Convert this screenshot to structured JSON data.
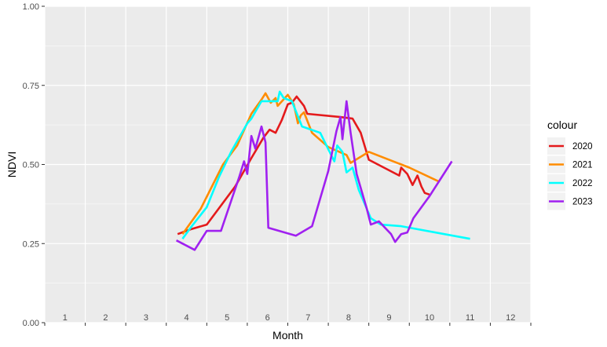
{
  "chart_data": {
    "type": "line",
    "title": "",
    "xlabel": "Month",
    "ylabel": "NDVI",
    "xlim": [
      0.5,
      12.5
    ],
    "ylim": [
      0,
      1
    ],
    "x_ticks": [
      1,
      2,
      3,
      4,
      5,
      6,
      7,
      8,
      9,
      10,
      11,
      12
    ],
    "x_tick_labels": [
      "1",
      "2",
      "3",
      "4",
      "5",
      "6",
      "7",
      "8",
      "9",
      "10",
      "11",
      "12"
    ],
    "y_ticks": [
      0,
      0.25,
      0.5,
      0.75,
      1
    ],
    "y_tick_labels": [
      "0.00",
      "0.25",
      "0.50",
      "0.75",
      "1.00"
    ],
    "grid": true,
    "legend": {
      "title": "colour",
      "position": "right",
      "entries": [
        "2020",
        "2021",
        "2022",
        "2023"
      ]
    },
    "series": [
      {
        "name": "2020",
        "color": "#e41a1c",
        "points": [
          [
            3.78,
            0.28
          ],
          [
            4.1,
            0.295
          ],
          [
            4.5,
            0.31
          ],
          [
            5.2,
            0.43
          ],
          [
            5.6,
            0.52
          ],
          [
            5.9,
            0.585
          ],
          [
            6.05,
            0.61
          ],
          [
            6.2,
            0.6
          ],
          [
            6.35,
            0.64
          ],
          [
            6.5,
            0.69
          ],
          [
            6.6,
            0.695
          ],
          [
            6.72,
            0.715
          ],
          [
            6.9,
            0.685
          ],
          [
            6.98,
            0.66
          ],
          [
            7.8,
            0.65
          ],
          [
            8.1,
            0.645
          ],
          [
            8.3,
            0.6
          ],
          [
            8.5,
            0.515
          ],
          [
            9.25,
            0.465
          ],
          [
            9.3,
            0.49
          ],
          [
            9.45,
            0.47
          ],
          [
            9.58,
            0.435
          ],
          [
            9.7,
            0.465
          ],
          [
            9.8,
            0.43
          ],
          [
            9.88,
            0.41
          ],
          [
            10.0,
            0.405
          ]
        ]
      },
      {
        "name": "2021",
        "color": "#ff8c00",
        "points": [
          [
            3.9,
            0.28
          ],
          [
            4.35,
            0.36
          ],
          [
            4.9,
            0.5
          ],
          [
            5.25,
            0.56
          ],
          [
            5.6,
            0.66
          ],
          [
            5.85,
            0.705
          ],
          [
            5.95,
            0.725
          ],
          [
            6.08,
            0.695
          ],
          [
            6.2,
            0.71
          ],
          [
            6.25,
            0.685
          ],
          [
            6.5,
            0.72
          ],
          [
            6.65,
            0.69
          ],
          [
            6.75,
            0.63
          ],
          [
            6.82,
            0.655
          ],
          [
            6.9,
            0.665
          ],
          [
            7.1,
            0.6
          ],
          [
            7.5,
            0.555
          ],
          [
            7.95,
            0.53
          ],
          [
            8.05,
            0.505
          ],
          [
            8.5,
            0.54
          ],
          [
            9.5,
            0.49
          ],
          [
            10.25,
            0.445
          ]
        ]
      },
      {
        "name": "2022",
        "color": "#00ffff",
        "points": [
          [
            3.9,
            0.265
          ],
          [
            4.1,
            0.3
          ],
          [
            4.5,
            0.365
          ],
          [
            4.8,
            0.46
          ],
          [
            5.1,
            0.54
          ],
          [
            5.5,
            0.63
          ],
          [
            5.6,
            0.645
          ],
          [
            5.85,
            0.7
          ],
          [
            6.1,
            0.7
          ],
          [
            6.25,
            0.7
          ],
          [
            6.3,
            0.73
          ],
          [
            6.4,
            0.71
          ],
          [
            6.6,
            0.7
          ],
          [
            6.85,
            0.62
          ],
          [
            7.3,
            0.6
          ],
          [
            7.55,
            0.535
          ],
          [
            7.65,
            0.51
          ],
          [
            7.72,
            0.56
          ],
          [
            7.85,
            0.54
          ],
          [
            7.95,
            0.475
          ],
          [
            8.1,
            0.49
          ],
          [
            8.25,
            0.42
          ],
          [
            8.55,
            0.33
          ],
          [
            8.8,
            0.31
          ],
          [
            9.3,
            0.305
          ],
          [
            11.0,
            0.265
          ]
        ]
      },
      {
        "name": "2023",
        "color": "#a020f0",
        "points": [
          [
            3.75,
            0.26
          ],
          [
            4.2,
            0.23
          ],
          [
            4.5,
            0.29
          ],
          [
            4.85,
            0.29
          ],
          [
            5.3,
            0.46
          ],
          [
            5.42,
            0.51
          ],
          [
            5.5,
            0.47
          ],
          [
            5.6,
            0.59
          ],
          [
            5.7,
            0.55
          ],
          [
            5.85,
            0.62
          ],
          [
            5.95,
            0.57
          ],
          [
            6.02,
            0.3
          ],
          [
            6.7,
            0.275
          ],
          [
            7.1,
            0.305
          ],
          [
            7.5,
            0.48
          ],
          [
            7.7,
            0.605
          ],
          [
            7.8,
            0.65
          ],
          [
            7.85,
            0.58
          ],
          [
            7.95,
            0.7
          ],
          [
            8.05,
            0.6
          ],
          [
            8.2,
            0.47
          ],
          [
            8.45,
            0.36
          ],
          [
            8.55,
            0.31
          ],
          [
            8.75,
            0.32
          ],
          [
            9.05,
            0.28
          ],
          [
            9.15,
            0.255
          ],
          [
            9.3,
            0.28
          ],
          [
            9.45,
            0.285
          ],
          [
            9.6,
            0.33
          ],
          [
            10.0,
            0.4
          ],
          [
            10.55,
            0.51
          ]
        ]
      }
    ]
  }
}
